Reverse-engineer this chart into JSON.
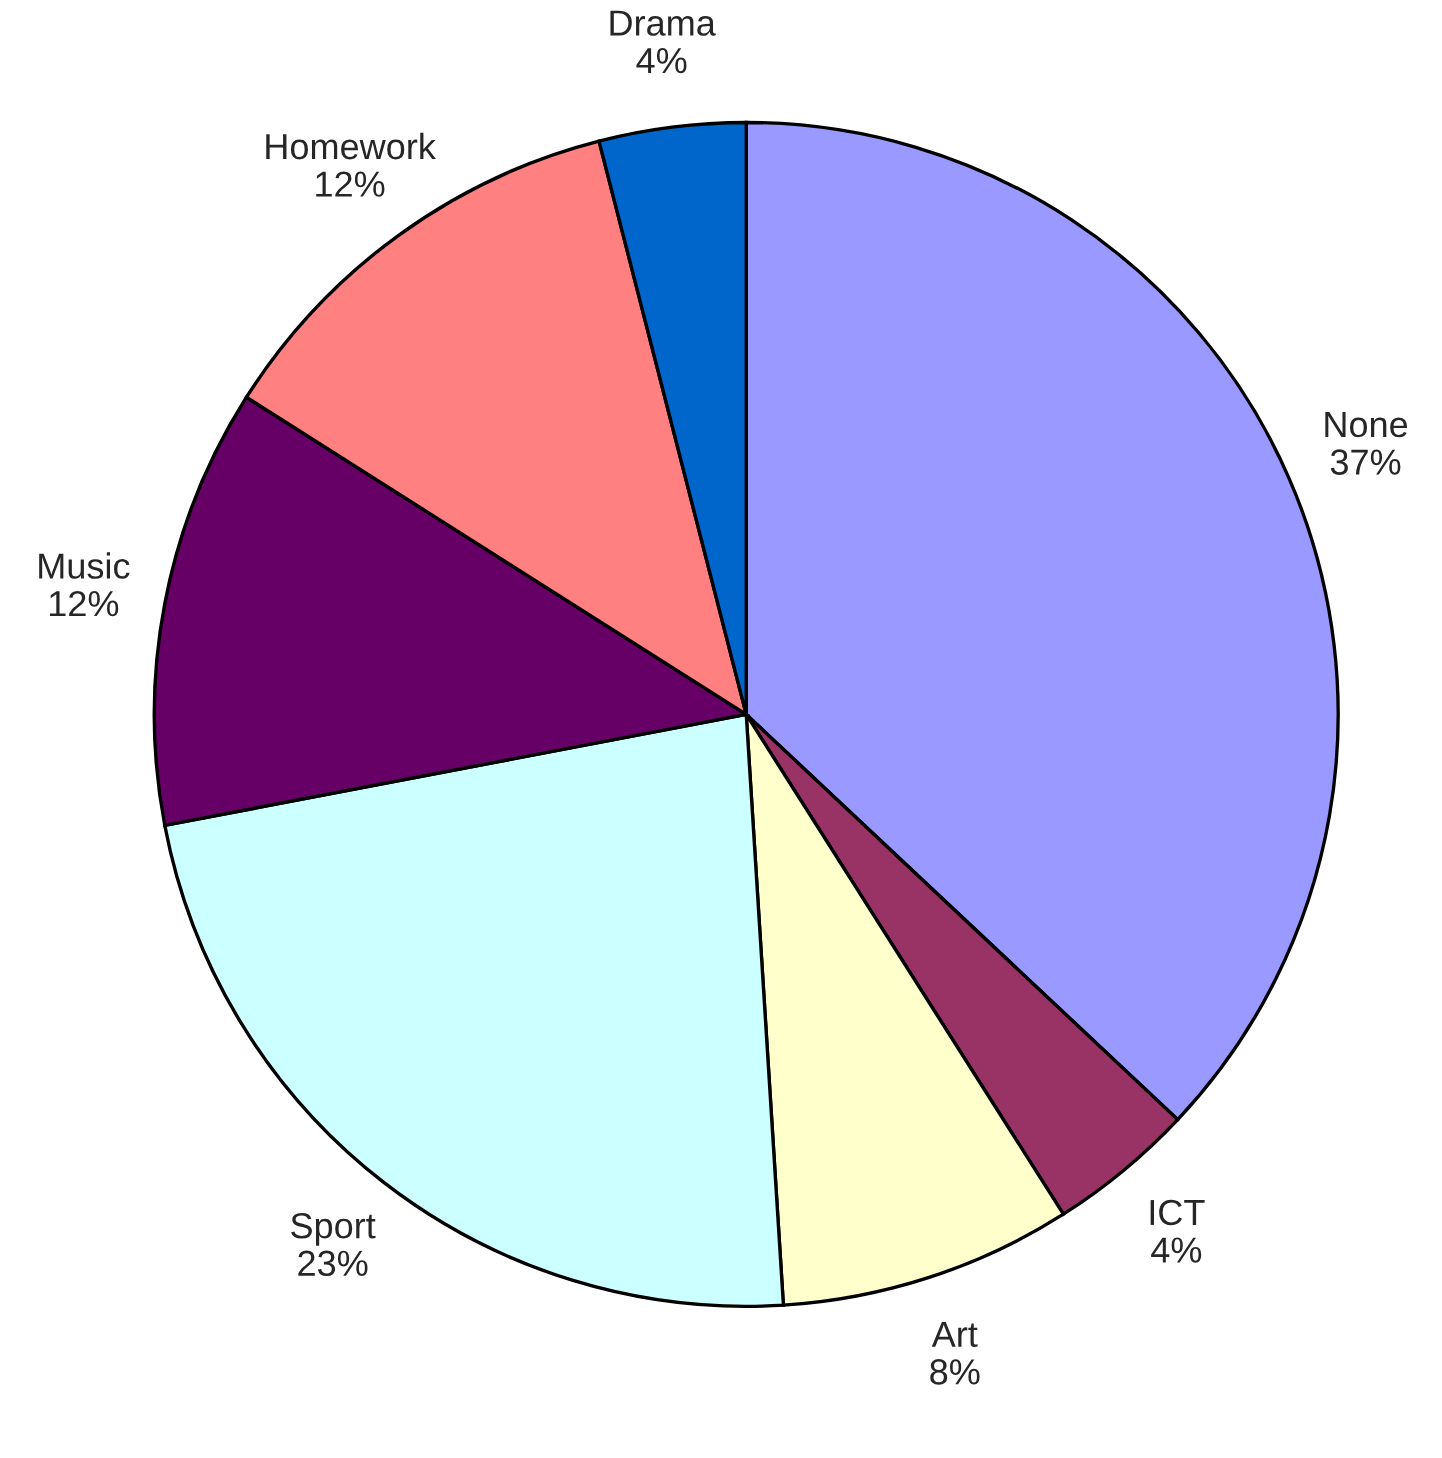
{
  "chart_data": {
    "type": "pie",
    "categories": [
      "None",
      "ICT",
      "Art",
      "Sport",
      "Music",
      "Homework",
      "Drama"
    ],
    "values": [
      37,
      4,
      8,
      23,
      12,
      12,
      4
    ],
    "value_labels": [
      "37%",
      "4%",
      "8%",
      "23%",
      "12%",
      "12%",
      "4%"
    ],
    "colors": [
      "#9999ff",
      "#993366",
      "#ffffcc",
      "#ccffff",
      "#660066",
      "#ff8080",
      "#0066cc"
    ],
    "legend": false
  }
}
